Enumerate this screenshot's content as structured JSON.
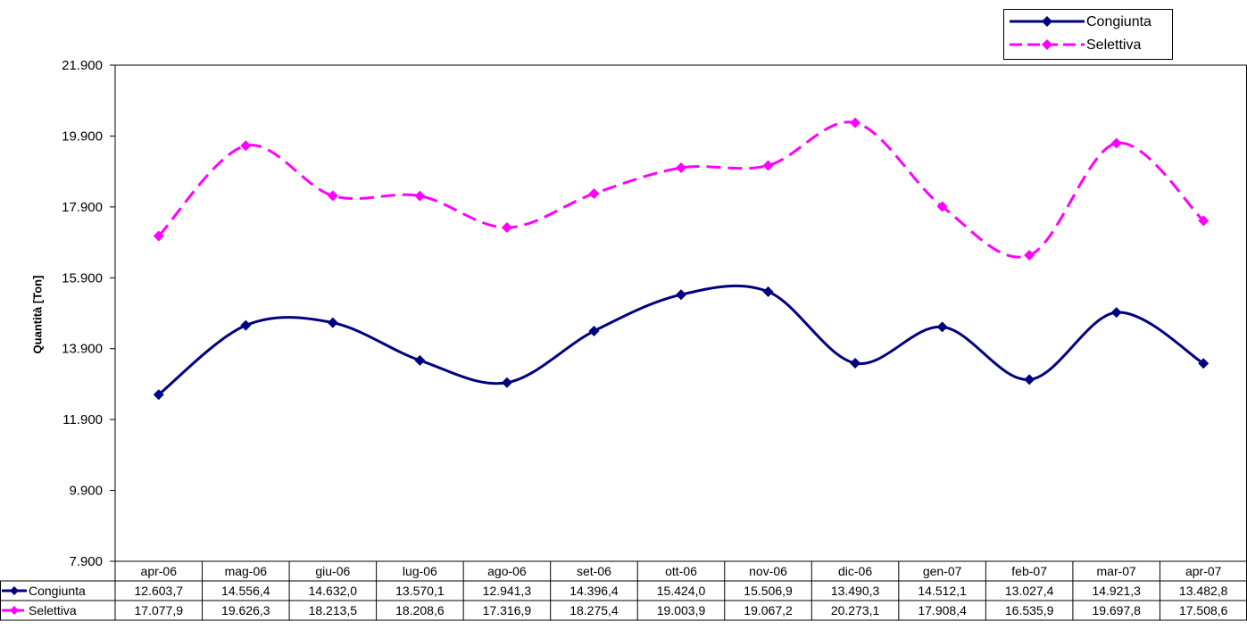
{
  "chart_data": {
    "type": "line",
    "title": "",
    "xlabel": "",
    "ylabel": "Quantità [Ton]",
    "ylim": [
      7900,
      21900
    ],
    "yticks": [
      "7.900",
      "9.900",
      "11.900",
      "13.900",
      "15.900",
      "17.900",
      "19.900",
      "21.900"
    ],
    "categories": [
      "apr-06",
      "mag-06",
      "giu-06",
      "lug-06",
      "ago-06",
      "set-06",
      "ott-06",
      "nov-06",
      "dic-06",
      "gen-07",
      "feb-07",
      "mar-07",
      "apr-07"
    ],
    "grid": false,
    "legend_position": "top-right",
    "series": [
      {
        "name": "Congiunta",
        "color": "#000080",
        "style": "solid",
        "values": [
          12603.7,
          14556.4,
          14632.0,
          13570.1,
          12941.3,
          14396.4,
          15424.0,
          15506.9,
          13490.3,
          14512.1,
          13027.4,
          14921.3,
          13482.8
        ],
        "labels": [
          "12.603,7",
          "14.556,4",
          "14.632,0",
          "13.570,1",
          "12.941,3",
          "14.396,4",
          "15.424,0",
          "15.506,9",
          "13.490,3",
          "14.512,1",
          "13.027,4",
          "14.921,3",
          "13.482,8"
        ]
      },
      {
        "name": "Selettiva",
        "color": "#ff00ff",
        "style": "dashed",
        "values": [
          17077.9,
          19626.3,
          18213.5,
          18208.6,
          17316.9,
          18275.4,
          19003.9,
          19067.2,
          20273.1,
          17908.4,
          16535.9,
          19697.8,
          17508.6
        ],
        "labels": [
          "17.077,9",
          "19.626,3",
          "18.213,5",
          "18.208,6",
          "17.316,9",
          "18.275,4",
          "19.003,9",
          "19.067,2",
          "20.273,1",
          "17.908,4",
          "16.535,9",
          "19.697,8",
          "17.508,6"
        ]
      }
    ]
  }
}
